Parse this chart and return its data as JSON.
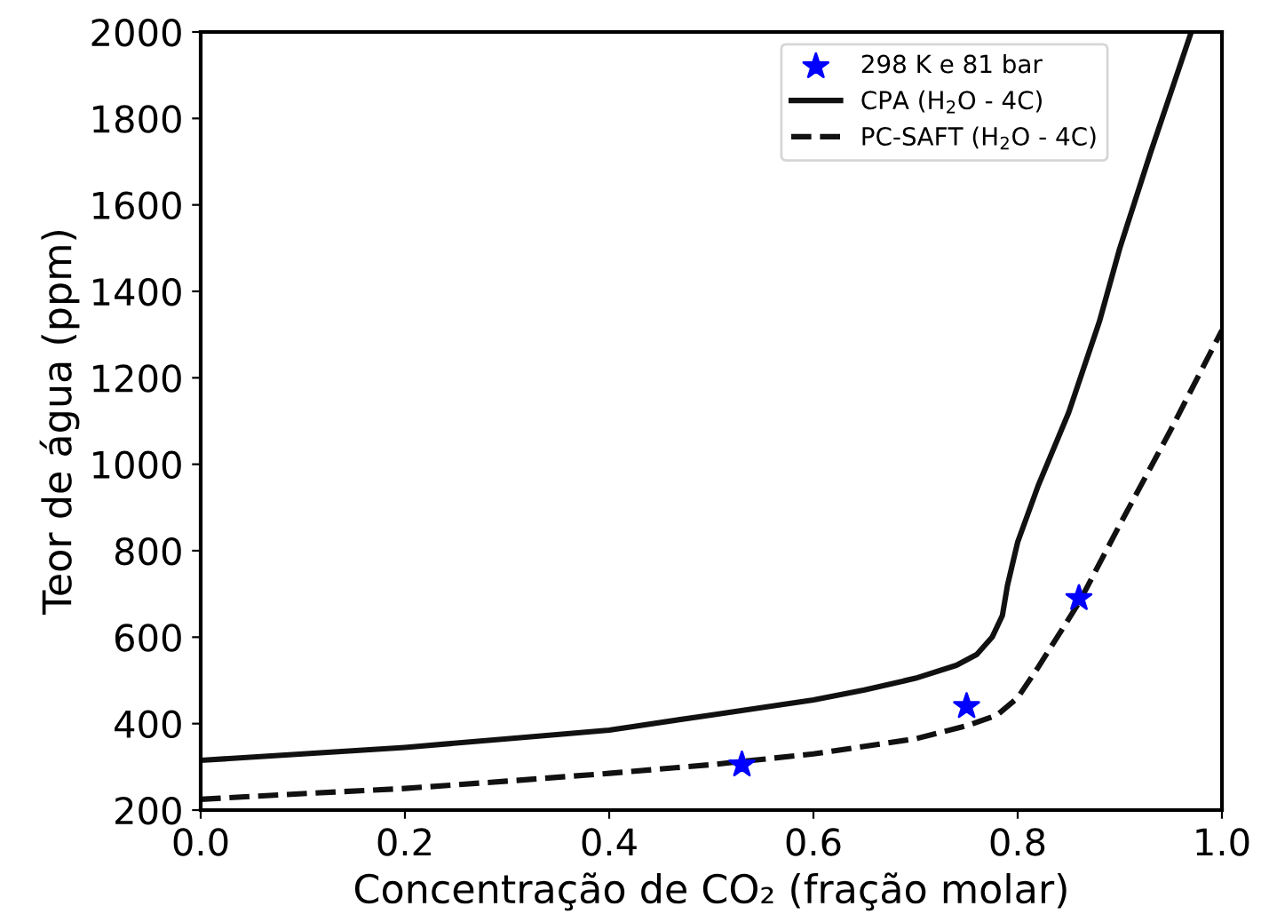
{
  "chart_data": {
    "type": "line",
    "xlabel": "Concentração de CO₂ (fração molar)",
    "ylabel": "Teor de água (ppm)",
    "xlim": [
      0.0,
      1.0
    ],
    "ylim": [
      200,
      2000
    ],
    "xticks": [
      {
        "value": 0,
        "label": "0.0"
      },
      {
        "value": 0.2,
        "label": "0.2"
      },
      {
        "value": 0.4,
        "label": "0.4"
      },
      {
        "value": 0.6,
        "label": "0.6"
      },
      {
        "value": 0.8,
        "label": "0.8"
      },
      {
        "value": 1,
        "label": "1.0"
      }
    ],
    "yticks": [
      200,
      400,
      600,
      800,
      1000,
      1200,
      1400,
      1600,
      1800,
      2000
    ],
    "grid": false,
    "legend": "top right",
    "series": [
      {
        "name": "298 K e 81 bar",
        "type": "scatter",
        "marker": "star",
        "color": "#0000ff",
        "x": [
          0.53,
          0.75,
          0.86
        ],
        "values": [
          305,
          440,
          690
        ]
      },
      {
        "name": "CPA (H$_{2}$O - 4C)",
        "line_style": "solid",
        "color": "#111111",
        "x": [
          0,
          0.1,
          0.2,
          0.3,
          0.4,
          0.5,
          0.6,
          0.65,
          0.7,
          0.74,
          0.76,
          0.775,
          0.785,
          0.79,
          0.8,
          0.82,
          0.85,
          0.88,
          0.9,
          0.93,
          0.95,
          0.97
        ],
        "values": [
          315,
          330,
          345,
          365,
          385,
          420,
          455,
          478,
          505,
          535,
          560,
          600,
          650,
          720,
          820,
          950,
          1120,
          1330,
          1500,
          1720,
          1860,
          2000
        ]
      },
      {
        "name": "PC-SAFT (H$_{2}$O - 4C)",
        "line_style": "dashed",
        "color": "#111111",
        "x": [
          0,
          0.1,
          0.2,
          0.3,
          0.4,
          0.5,
          0.6,
          0.7,
          0.75,
          0.78,
          0.8,
          0.82,
          0.86,
          0.9,
          0.95,
          1.0
        ],
        "values": [
          225,
          238,
          250,
          267,
          285,
          305,
          330,
          365,
          395,
          420,
          460,
          530,
          680,
          860,
          1080,
          1310
        ]
      }
    ]
  }
}
